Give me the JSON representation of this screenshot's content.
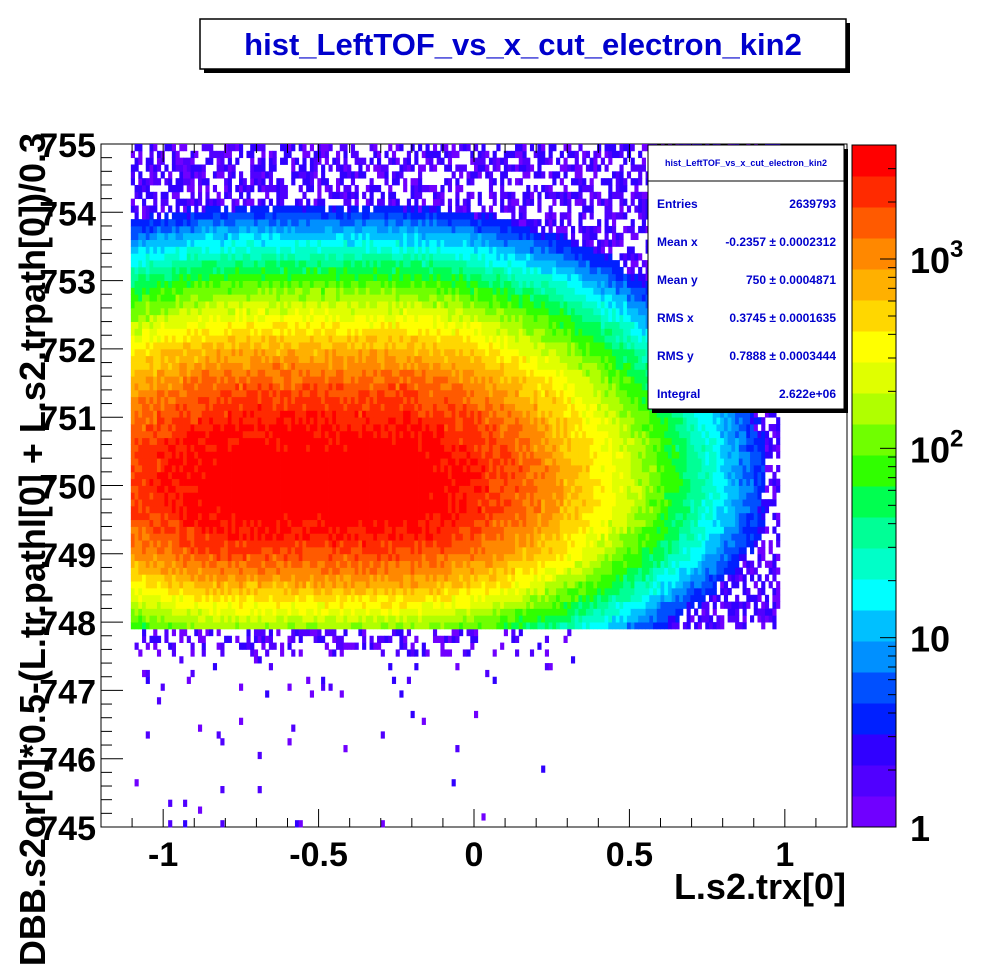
{
  "chart_data": {
    "type": "heatmap",
    "title": "hist_LeftTOF_vs_x_cut_electron_kin2",
    "xlabel": "L.s2.trx[0]",
    "ylabel": "DBB.s2or[0]*0.5-(L.tr.pathl[0] + L.s2.trpath[0])/0.3",
    "xlim": [
      -1.2,
      1.2
    ],
    "ylim": [
      745,
      755
    ],
    "x_ticks": [
      {
        "value": -1,
        "label": "-1"
      },
      {
        "value": -0.5,
        "label": "-0.5"
      },
      {
        "value": 0,
        "label": "0"
      },
      {
        "value": 0.5,
        "label": "0.5"
      },
      {
        "value": 1,
        "label": "1"
      }
    ],
    "y_ticks": [
      {
        "value": 745,
        "label": "745"
      },
      {
        "value": 746,
        "label": "746"
      },
      {
        "value": 747,
        "label": "747"
      },
      {
        "value": 748,
        "label": "748"
      },
      {
        "value": 749,
        "label": "749"
      },
      {
        "value": 750,
        "label": "750"
      },
      {
        "value": 751,
        "label": "751"
      },
      {
        "value": 752,
        "label": "752"
      },
      {
        "value": 753,
        "label": "753"
      },
      {
        "value": 754,
        "label": "754"
      },
      {
        "value": 755,
        "label": "755"
      }
    ],
    "z_scale": "log",
    "zlim": [
      1,
      4000
    ],
    "colorbar_ticks": [
      {
        "value": 1,
        "base": "1",
        "exp": ""
      },
      {
        "value": 10,
        "base": "10",
        "exp": ""
      },
      {
        "value": 100,
        "base": "10",
        "exp": "2"
      },
      {
        "value": 1000,
        "base": "10",
        "exp": "3"
      }
    ],
    "palette": [
      "#7000ff",
      "#5000ff",
      "#3000ff",
      "#0020ff",
      "#0050ff",
      "#0090ff",
      "#00c0ff",
      "#00ffff",
      "#00ffc8",
      "#00ff96",
      "#00ff50",
      "#30ff00",
      "#70ff00",
      "#b0ff00",
      "#e0ff00",
      "#ffff00",
      "#ffd700",
      "#ffb000",
      "#ff8800",
      "#ff5a00",
      "#ff2a00",
      "#ff0000"
    ],
    "distribution": {
      "x_center": -0.5,
      "x_sigma": 0.33,
      "x_core_plateau": 0.2,
      "y_center": 750.0,
      "y_sigma": 0.8,
      "x_min": -1.05,
      "x_max": 0.97,
      "y_min": 747.9,
      "peak_count": 4000
    },
    "stats": {
      "name": "hist_LeftTOF_vs_x_cut_electron_kin2",
      "rows": [
        {
          "label": "Entries",
          "value": "2639793"
        },
        {
          "label": "Mean x",
          "value": "-0.2357 ± 0.0002312"
        },
        {
          "label": "Mean y",
          "value": "750 ± 0.0004871"
        },
        {
          "label": "RMS x",
          "value": "0.3745 ± 0.0001635"
        },
        {
          "label": "RMS y",
          "value": "0.7888 ± 0.0003444"
        },
        {
          "label": "Integral",
          "value": "2.622e+06"
        }
      ]
    }
  }
}
